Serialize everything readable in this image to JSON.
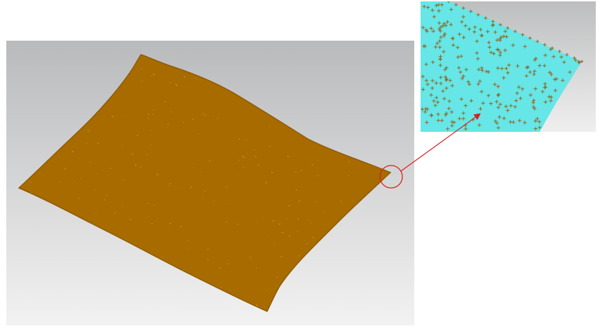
{
  "scene": {
    "background_gradient": [
      "#b9babc",
      "#f2f2f2"
    ],
    "surface_color": "#a76b00",
    "surface_speck_color": "#c9a058",
    "zoom_surface_color": "#66e6e6",
    "zoom_background_gradient": [
      "#bdbebf",
      "#efefef"
    ],
    "point_marker_color": "#8a6a2a",
    "callout_color": "#d62020",
    "main_view_icon": "point-cloud-surface-icon",
    "zoom_view_icon": "magnified-point-cloud-icon"
  }
}
